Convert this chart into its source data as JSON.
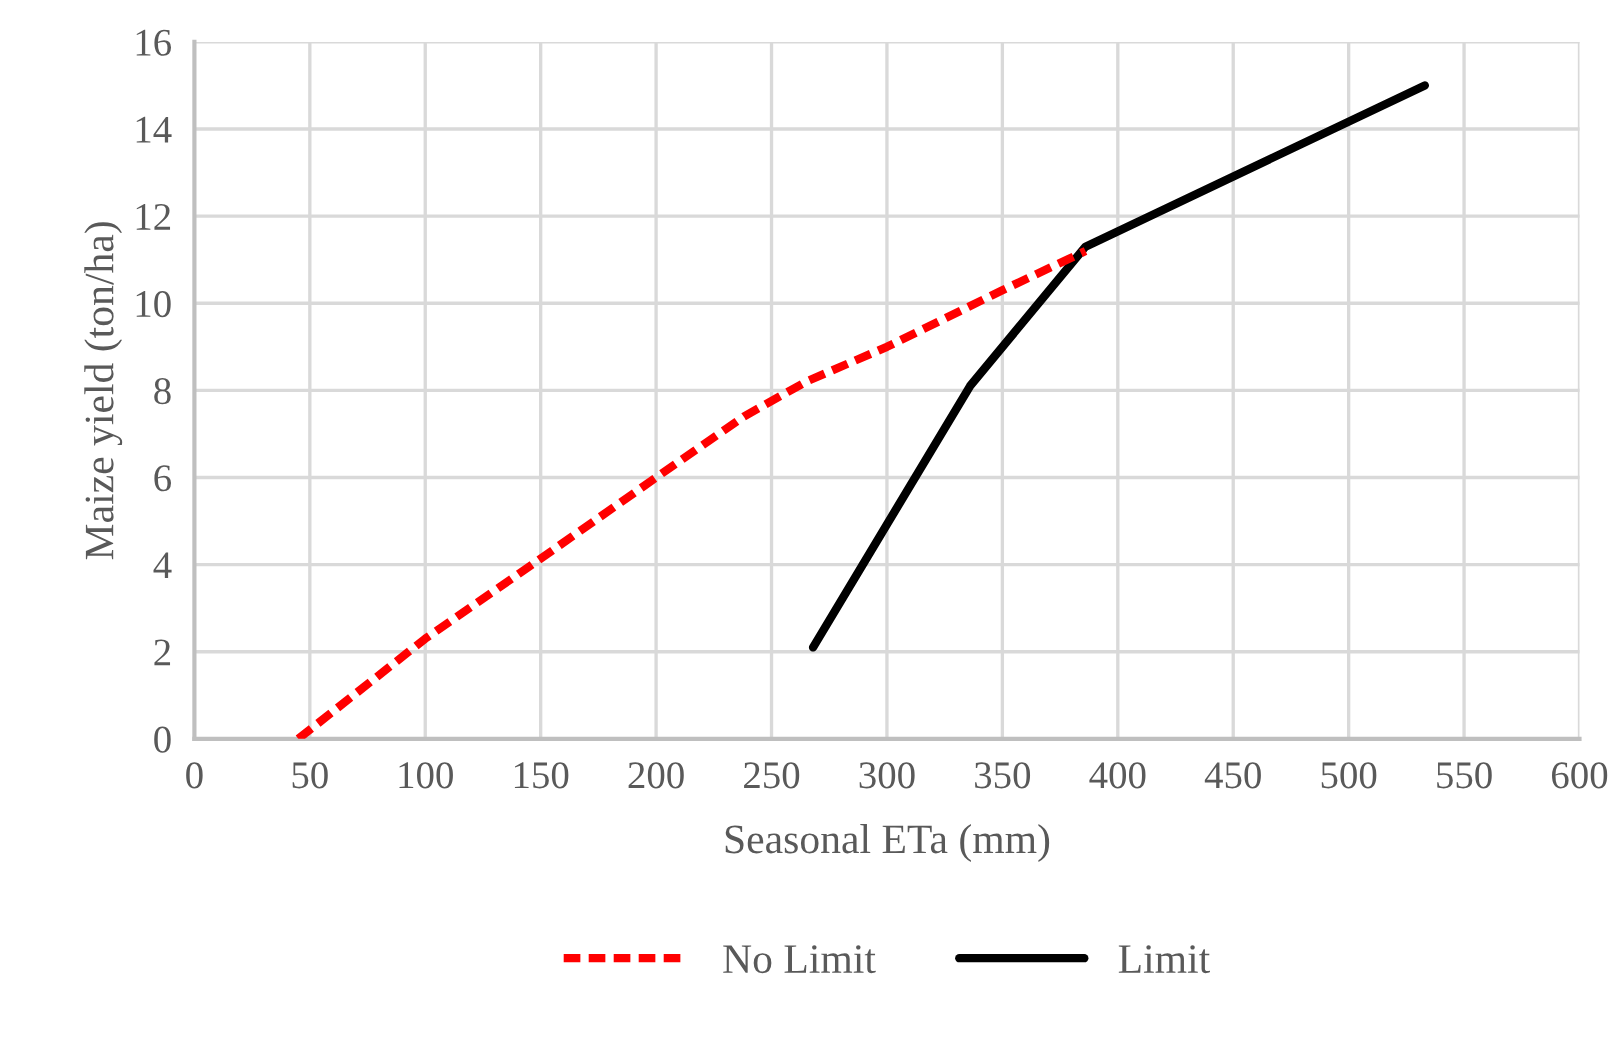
{
  "chart_data": {
    "type": "line",
    "xlabel": "Seasonal ETa (mm)",
    "ylabel": "Maize yield (ton/ha)",
    "xlim": [
      0,
      600
    ],
    "xticks": [
      0,
      50,
      100,
      150,
      200,
      250,
      300,
      350,
      400,
      450,
      500,
      550,
      600
    ],
    "ylim": [
      0,
      16
    ],
    "yticks": [
      0,
      2,
      4,
      6,
      8,
      10,
      12,
      14,
      16
    ],
    "grid": true,
    "legend": "bottom",
    "marker": "none",
    "series": [
      {
        "name": "No Limit",
        "color": "#ff0000",
        "line_style": "dashed",
        "x": [
          45,
          100,
          149,
          200,
          238,
          265,
          300,
          350,
          386
        ],
        "values": [
          0,
          2.3,
          4.1,
          6.0,
          7.4,
          8.2,
          9.0,
          10.3,
          11.2
        ]
      },
      {
        "name": "Limit",
        "color": "#000000",
        "line_style": "solid",
        "x": [
          268,
          336,
          386,
          533
        ],
        "values": [
          2.1,
          8.1,
          11.3,
          15.0
        ]
      }
    ]
  }
}
